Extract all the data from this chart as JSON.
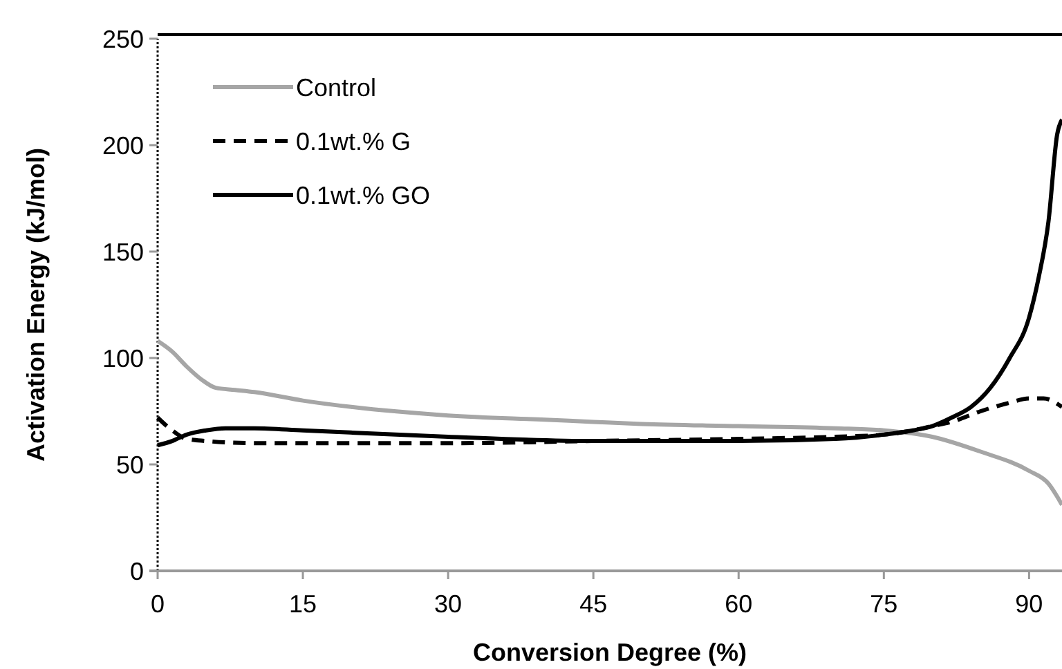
{
  "chart_data": {
    "type": "line",
    "xlabel": "Conversion Degree (%)",
    "ylabel": "Activation Energy (kJ/mol)",
    "xlim": [
      0,
      93.4
    ],
    "xticks": [
      0,
      15,
      30,
      45,
      60,
      75,
      90
    ],
    "ylim": [
      0,
      250
    ],
    "yticks": [
      0,
      50,
      100,
      150,
      200,
      250
    ],
    "legend": "top left",
    "grid": false,
    "marker": "none",
    "series": [
      {
        "name": "Control",
        "color": "#a6a6a6",
        "line_style": "solid",
        "x": [
          0,
          1.5,
          3,
          4.5,
          6,
          8,
          10,
          15,
          20,
          30,
          40,
          45,
          50,
          60,
          70,
          75,
          80,
          85,
          90,
          92,
          93.4
        ],
        "values": [
          108,
          103,
          96,
          90,
          86,
          85,
          84,
          80,
          77,
          73,
          71,
          70,
          69,
          68,
          67,
          66,
          63,
          56,
          47,
          41,
          31
        ]
      },
      {
        "name": "0.1wt.% G",
        "color": "#000000",
        "line_style": "dashed",
        "x": [
          0,
          1.5,
          3,
          5,
          10,
          15,
          30,
          45,
          60,
          70,
          75,
          78,
          80,
          82,
          85,
          88,
          90,
          91.5,
          93.4
        ],
        "values": [
          72,
          66,
          62,
          61,
          60,
          60,
          60,
          61,
          62,
          63,
          64,
          66,
          68,
          70,
          75,
          79,
          81,
          81,
          77
        ]
      },
      {
        "name": "0.1wt.% GO",
        "color": "#000000",
        "line_style": "solid",
        "x": [
          0,
          1.5,
          3,
          5,
          7,
          10,
          15,
          30,
          45,
          60,
          70,
          75,
          78,
          80,
          82,
          84,
          86,
          88,
          90,
          91,
          92,
          92.9,
          93.4
        ],
        "values": [
          59,
          61,
          64,
          66,
          67,
          67,
          66,
          63,
          61,
          61,
          62,
          64,
          66,
          68,
          72,
          77,
          86,
          100,
          119,
          138,
          164,
          205,
          212
        ]
      }
    ]
  }
}
